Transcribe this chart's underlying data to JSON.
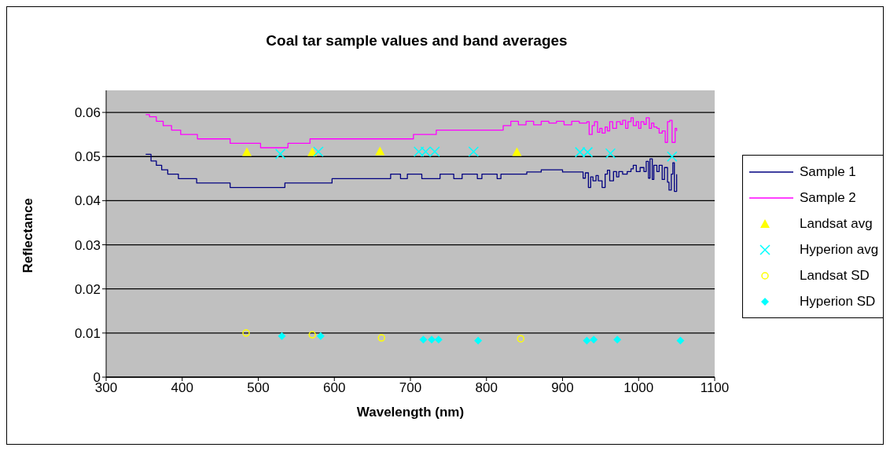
{
  "chart_data": {
    "type": "line",
    "title": "Coal tar sample values and band averages",
    "xlabel": "Wavelength (nm)",
    "ylabel": "Reflectance",
    "xlim": [
      300,
      1100
    ],
    "xticks": [
      300,
      400,
      500,
      600,
      700,
      800,
      900,
      1000,
      1100
    ],
    "ylim": [
      0,
      0.065
    ],
    "yticks": [
      0,
      0.01,
      0.02,
      0.03,
      0.04,
      0.05,
      0.06
    ],
    "grid": "y",
    "legend": "right",
    "series": [
      {
        "name": "Sample 1",
        "type": "step",
        "color": "#000080",
        "marker": "none",
        "x": [
          352,
          359,
          366,
          373,
          381,
          395,
          419,
          422,
          463,
          535,
          597,
          674,
          687,
          696,
          703,
          715,
          739,
          757,
          768,
          788,
          794,
          814,
          819,
          853,
          872,
          900,
          927,
          930,
          934,
          937,
          940,
          944,
          947,
          952,
          956,
          959,
          962,
          967,
          971,
          974,
          979,
          985,
          990,
          993,
          997,
          1002,
          1007,
          1010,
          1013,
          1015,
          1018,
          1020,
          1024,
          1027,
          1031,
          1034,
          1038,
          1040,
          1043,
          1045,
          1047,
          1050
        ],
        "values": [
          0.0505,
          0.049,
          0.048,
          0.047,
          0.046,
          0.045,
          0.044,
          0.044,
          0.043,
          0.044,
          0.045,
          0.046,
          0.045,
          0.046,
          0.046,
          0.045,
          0.046,
          0.045,
          0.046,
          0.045,
          0.046,
          0.045,
          0.046,
          0.0465,
          0.047,
          0.0465,
          0.0451,
          0.0463,
          0.043,
          0.0454,
          0.0445,
          0.0457,
          0.0445,
          0.043,
          0.046,
          0.0469,
          0.0445,
          0.0466,
          0.0454,
          0.0466,
          0.046,
          0.0466,
          0.0472,
          0.048,
          0.0466,
          0.0475,
          0.0466,
          0.0489,
          0.0451,
          0.0495,
          0.0448,
          0.048,
          0.0466,
          0.048,
          0.0448,
          0.0475,
          0.0442,
          0.0424,
          0.046,
          0.0486,
          0.0421,
          0.046
        ]
      },
      {
        "name": "Sample 2",
        "type": "step",
        "color": "#ff00ff",
        "marker": "none",
        "x": [
          352,
          357,
          366,
          375,
          386,
          398,
          420,
          463,
          503,
          539,
          568,
          704,
          734,
          822,
          832,
          842,
          852,
          862,
          872,
          882,
          892,
          902,
          912,
          922,
          932,
          935,
          939,
          942,
          946,
          949,
          952,
          956,
          959,
          962,
          966,
          971,
          976,
          979,
          983,
          986,
          990,
          993,
          997,
          1000,
          1003,
          1007,
          1010,
          1014,
          1017,
          1020,
          1024,
          1027,
          1031,
          1035,
          1038,
          1041,
          1044,
          1048,
          1050
        ],
        "values": [
          0.0595,
          0.059,
          0.058,
          0.057,
          0.056,
          0.055,
          0.054,
          0.053,
          0.052,
          0.053,
          0.054,
          0.055,
          0.056,
          0.057,
          0.058,
          0.0572,
          0.058,
          0.0572,
          0.058,
          0.0576,
          0.058,
          0.0572,
          0.058,
          0.0576,
          0.0579,
          0.055,
          0.057,
          0.0579,
          0.0555,
          0.0564,
          0.0553,
          0.0567,
          0.0558,
          0.0579,
          0.0564,
          0.0579,
          0.0573,
          0.0582,
          0.0564,
          0.0579,
          0.0588,
          0.057,
          0.0579,
          0.0564,
          0.0579,
          0.0573,
          0.0588,
          0.0564,
          0.0576,
          0.0567,
          0.0564,
          0.0553,
          0.0558,
          0.0532,
          0.0579,
          0.0582,
          0.0532,
          0.0564,
          0.0558
        ]
      },
      {
        "name": "Landsat avg",
        "type": "scatter",
        "color": "#ffff00",
        "marker": "triangle",
        "x": [
          485,
          571,
          660,
          840
        ],
        "values": [
          0.051,
          0.051,
          0.0512,
          0.051
        ]
      },
      {
        "name": "Hyperion avg",
        "type": "scatter",
        "color": "#00ffff",
        "marker": "cross",
        "x": [
          529,
          579,
          711,
          720,
          732,
          783,
          923,
          933,
          963,
          1044
        ],
        "values": [
          0.0506,
          0.0511,
          0.0511,
          0.0511,
          0.0511,
          0.0511,
          0.051,
          0.051,
          0.0507,
          0.05
        ]
      },
      {
        "name": "Landsat SD",
        "type": "scatter",
        "color": "#ffff00",
        "marker": "circle",
        "x": [
          484,
          571,
          662,
          845
        ],
        "values": [
          0.01,
          0.0096,
          0.0089,
          0.0087
        ]
      },
      {
        "name": "Hyperion SD",
        "type": "scatter",
        "color": "#00ffff",
        "marker": "diamond",
        "x": [
          531,
          582,
          717,
          728,
          737,
          789,
          932,
          941,
          972,
          1055
        ],
        "values": [
          0.0093,
          0.0093,
          0.0085,
          0.0085,
          0.0085,
          0.0083,
          0.0083,
          0.0085,
          0.0085,
          0.0083
        ]
      }
    ]
  }
}
